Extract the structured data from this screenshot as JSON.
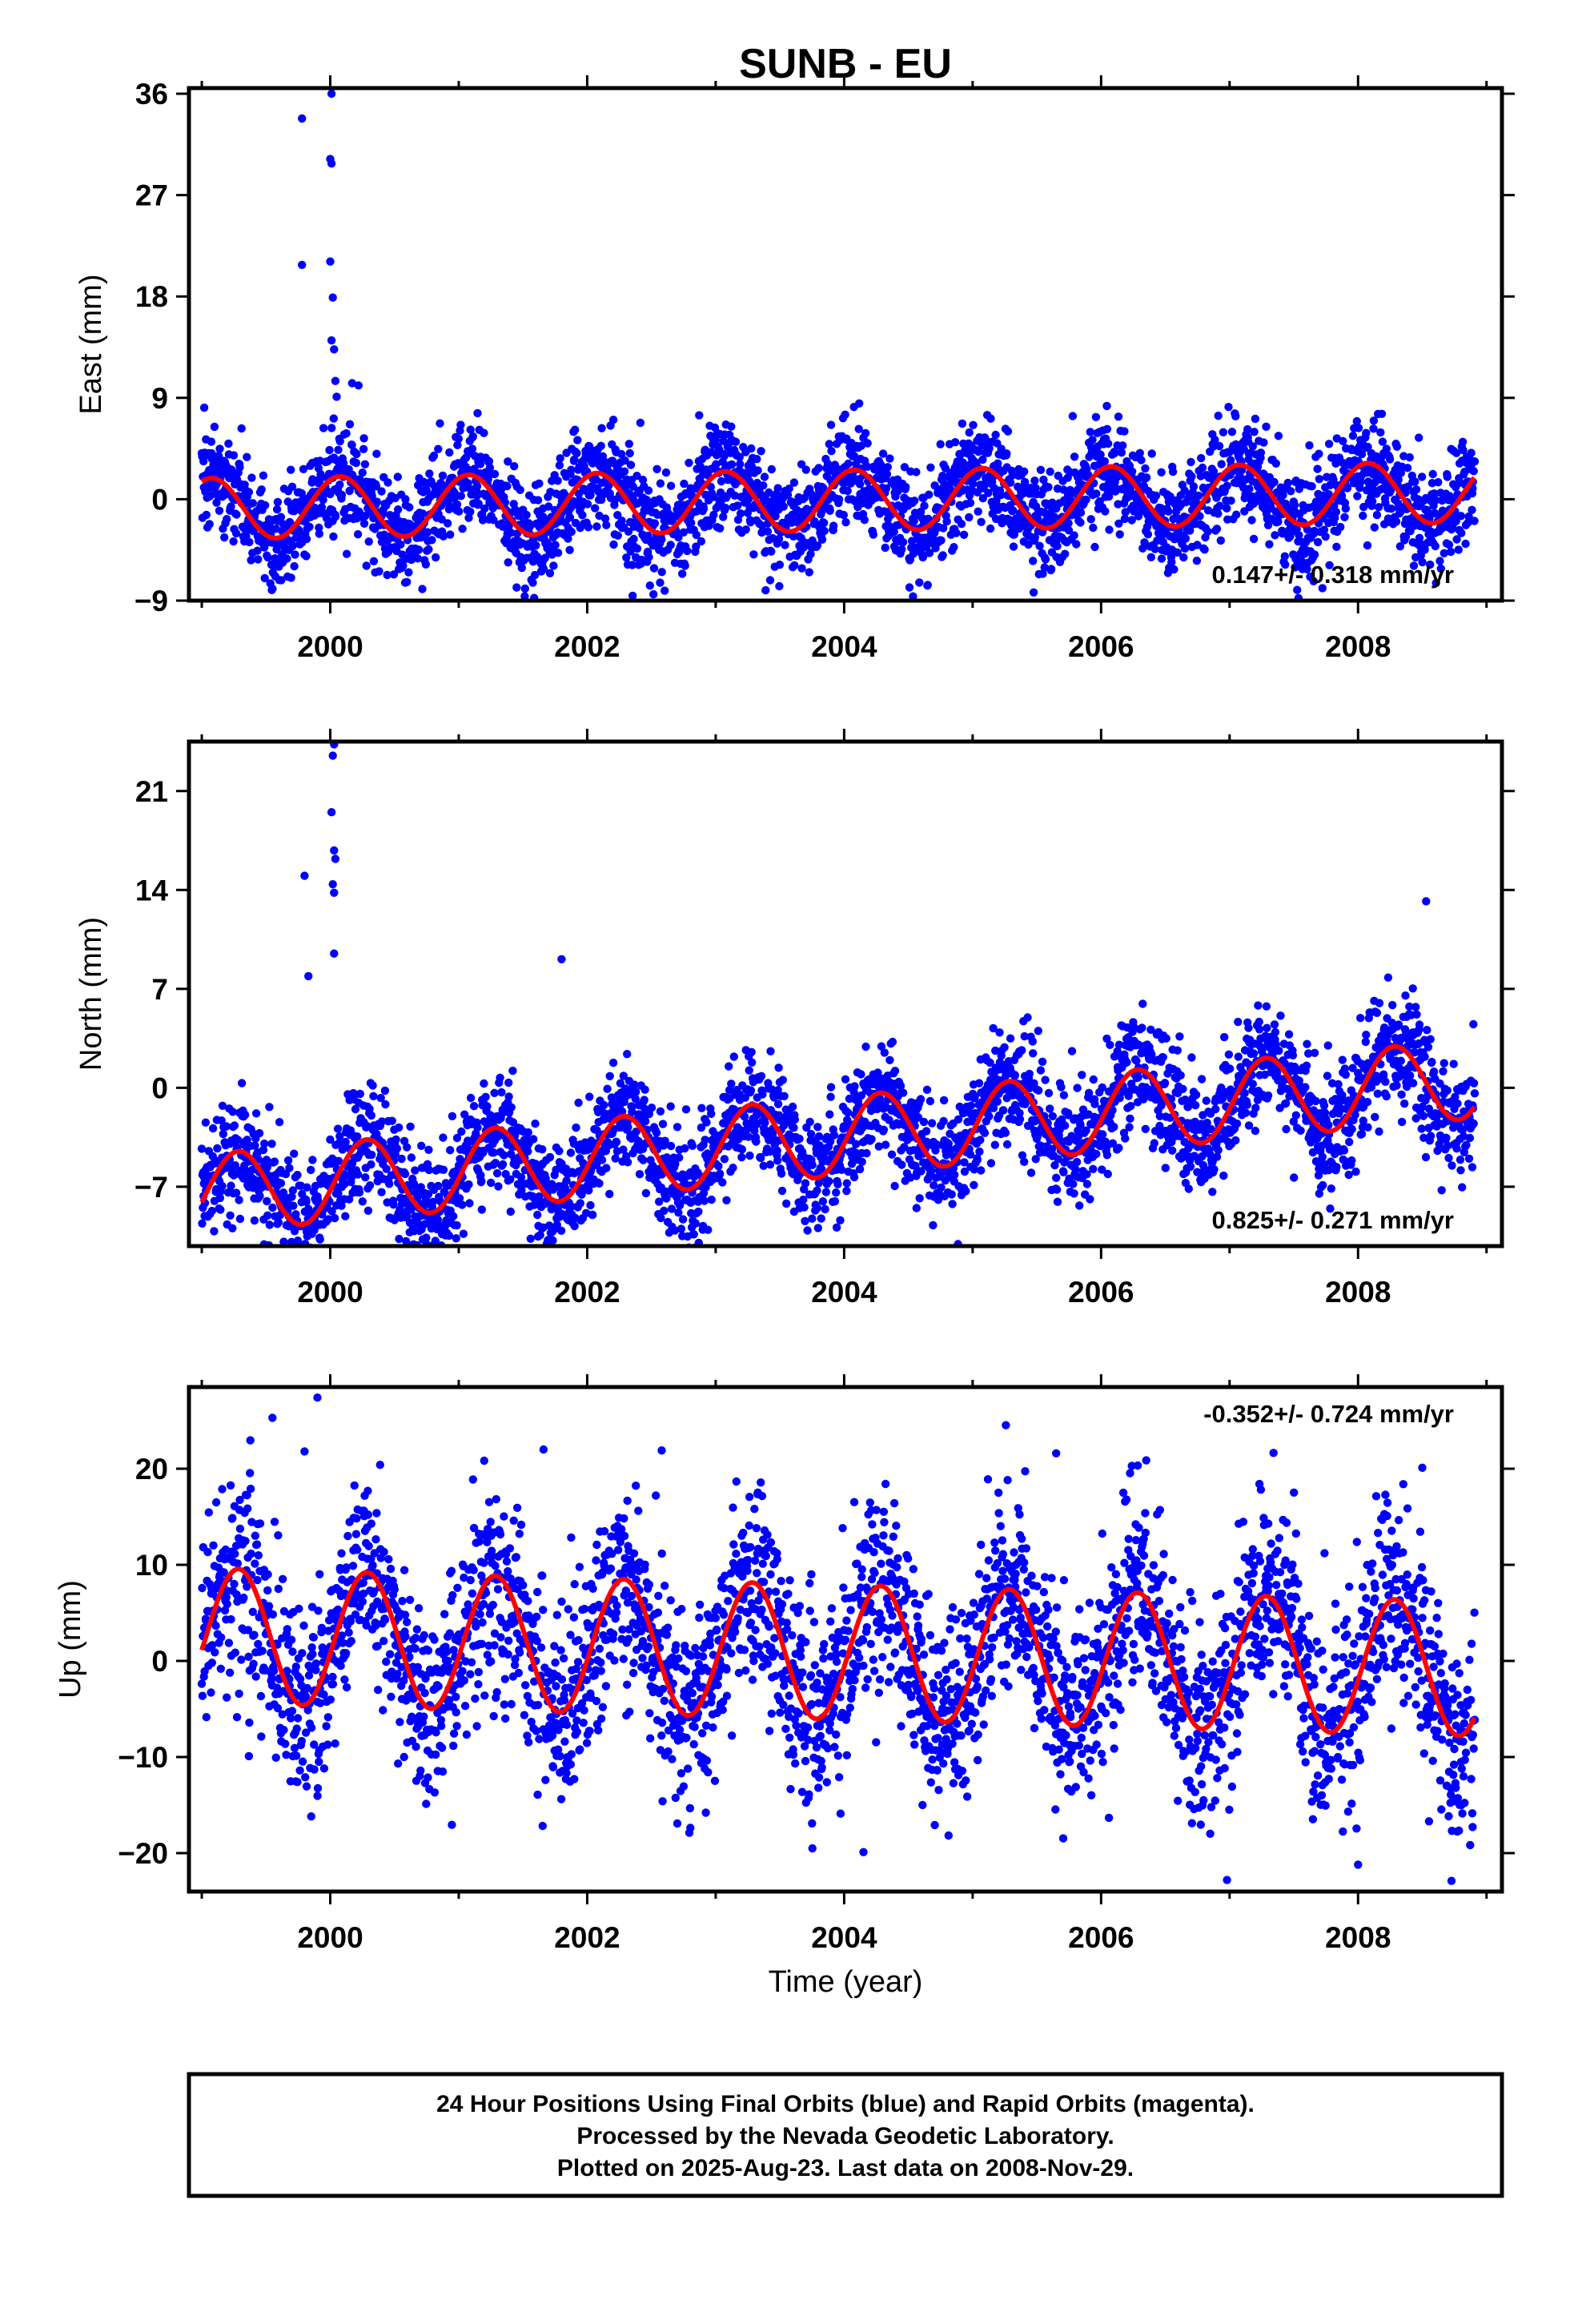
{
  "title": "SUNB - EU",
  "caption": [
    "24 Hour Positions Using Final Orbits (blue) and Rapid Orbits (magenta).",
    "Processed by the Nevada Geodetic Laboratory.",
    "Plotted on 2025-Aug-23. Last data on 2008-Nov-29."
  ],
  "colors": {
    "data": "#0000ff",
    "fit": "#ff0000",
    "frame": "#000000"
  },
  "chart_data": [
    {
      "type": "scatter",
      "ylabel": "East (mm)",
      "xlabel": "",
      "xlim": [
        1998.9,
        2009.12
      ],
      "ylim": [
        -9,
        36.5
      ],
      "xticks": [
        2000,
        2002,
        2004,
        2006,
        2008
      ],
      "yticks": [
        -9,
        0,
        9,
        18,
        27,
        36
      ],
      "rate": "0.147+/- 0.318 mm/yr",
      "rate_position": "bottom-right",
      "series": [
        {
          "kind": "points",
          "fit": {
            "offset": -0.1,
            "slope": 0.147,
            "amp": 2.7,
            "phase": 1.1
          },
          "scatter_sd": 2.3
        },
        {
          "kind": "line"
        }
      ],
      "outliers": [
        [
          1999.78,
          33.8
        ],
        [
          2000.01,
          36.0
        ],
        [
          2000.0,
          30.2
        ],
        [
          2000.01,
          29.8
        ],
        [
          1999.78,
          20.8
        ],
        [
          2000.0,
          21.1
        ],
        [
          2000.02,
          17.9
        ],
        [
          2000.01,
          14.1
        ],
        [
          2000.03,
          13.3
        ],
        [
          2000.04,
          10.5
        ],
        [
          2000.17,
          10.3
        ],
        [
          2000.22,
          10.1
        ],
        [
          2000.05,
          9.1
        ]
      ]
    },
    {
      "type": "scatter",
      "ylabel": "North (mm)",
      "xlabel": "",
      "xlim": [
        1998.9,
        2009.12
      ],
      "ylim": [
        -11.2,
        24.5
      ],
      "xticks": [
        2000,
        2002,
        2004,
        2006,
        2008
      ],
      "yticks": [
        -7,
        0,
        7,
        14,
        21
      ],
      "rate": "0.825+/- 0.271 mm/yr",
      "rate_position": "bottom-right",
      "series": [
        {
          "kind": "points",
          "fit": {
            "offset": -3.4,
            "slope": 0.825,
            "amp": 2.8,
            "phase": -0.2
          },
          "scatter_sd": 2.0
        },
        {
          "kind": "line"
        }
      ],
      "outliers": [
        [
          2000.03,
          24.3
        ],
        [
          2000.02,
          23.5
        ],
        [
          2000.01,
          19.5
        ],
        [
          2000.03,
          16.8
        ],
        [
          2000.04,
          16.2
        ],
        [
          1999.8,
          15.0
        ],
        [
          2000.02,
          14.4
        ],
        [
          2000.03,
          13.8
        ],
        [
          2000.03,
          9.5
        ],
        [
          1999.83,
          7.9
        ],
        [
          2001.8,
          9.1
        ],
        [
          2008.53,
          13.2
        ]
      ]
    },
    {
      "type": "scatter",
      "ylabel": "Up (mm)",
      "xlabel": "Time (year)",
      "xlim": [
        1998.9,
        2009.12
      ],
      "ylim": [
        -24,
        28.5
      ],
      "xticks": [
        2000,
        2002,
        2004,
        2006,
        2008
      ],
      "yticks": [
        -20,
        -10,
        0,
        10,
        20
      ],
      "rate": "-0.352+/- 0.724 mm/yr",
      "rate_position": "top-right",
      "series": [
        {
          "kind": "points",
          "fit": {
            "offset": 0.9,
            "slope": -0.352,
            "amp": 7.0,
            "phase": -0.22
          },
          "scatter_sd": 5.3
        },
        {
          "kind": "line"
        }
      ],
      "outliers": [
        [
          1999.9,
          27.4
        ],
        [
          1999.55,
          25.3
        ],
        [
          1999.8,
          21.8
        ],
        [
          2001.66,
          22.0
        ],
        [
          2002.58,
          21.9
        ],
        [
          2005.65,
          21.6
        ],
        [
          2008.5,
          20.1
        ],
        [
          2006.98,
          -22.8
        ],
        [
          2008.0,
          -21.2
        ],
        [
          2004.15,
          -19.9
        ]
      ]
    }
  ]
}
